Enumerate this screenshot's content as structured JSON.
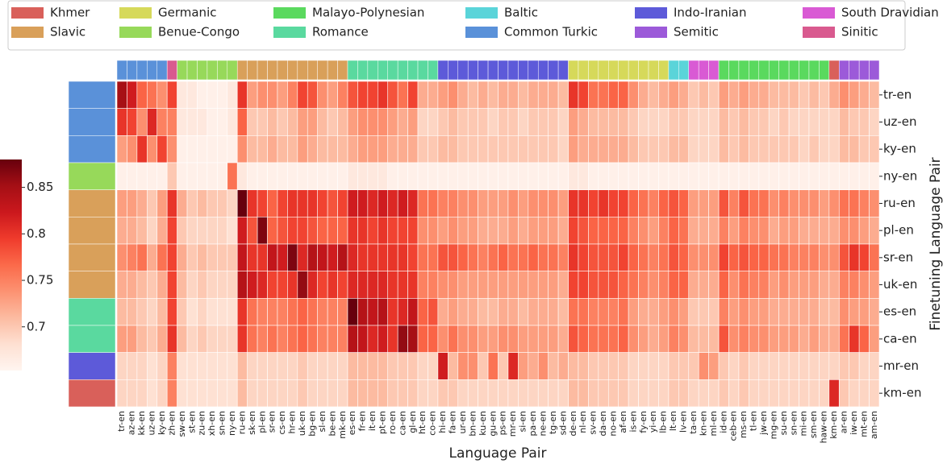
{
  "chart_data": {
    "type": "heatmap",
    "x_label": "Language Pair",
    "y_label": "Finetuning Language Pair",
    "colormap": "Reds",
    "clim": [
      0.653,
      0.88
    ],
    "colorbar_ticks": [
      0.7,
      0.75,
      0.8,
      0.85
    ],
    "groups": [
      {
        "name": "Khmer",
        "color": "#d9605a"
      },
      {
        "name": "Slavic",
        "color": "#d9a05a"
      },
      {
        "name": "Germanic",
        "color": "#d6d95a"
      },
      {
        "name": "Benue-Congo",
        "color": "#97d95a"
      },
      {
        "name": "Malayo-Polynesian",
        "color": "#5ad95e"
      },
      {
        "name": "Romance",
        "color": "#5ad99f"
      },
      {
        "name": "Baltic",
        "color": "#5ad4d9"
      },
      {
        "name": "Common Turkic",
        "color": "#5a91d9"
      },
      {
        "name": "Indo-Iranian",
        "color": "#5d5ad9"
      },
      {
        "name": "Semitic",
        "color": "#9c5ad9"
      },
      {
        "name": "South Dravidian",
        "color": "#d95ad4"
      },
      {
        "name": "Sinitic",
        "color": "#d95a8f"
      }
    ],
    "categories": [
      "tr-en",
      "az-en",
      "kk-en",
      "uz-en",
      "ky-en",
      "zh-en",
      "sw-en",
      "st-en",
      "zu-en",
      "xh-en",
      "sn-en",
      "ny-en",
      "ru-en",
      "sk-en",
      "pl-en",
      "sr-en",
      "cs-en",
      "hr-en",
      "uk-en",
      "bg-en",
      "sl-en",
      "be-en",
      "mk-en",
      "es-en",
      "fr-en",
      "it-en",
      "pt-en",
      "ro-en",
      "ca-en",
      "gl-en",
      "ht-en",
      "co-en",
      "hi-en",
      "fa-en",
      "ur-en",
      "bn-en",
      "ku-en",
      "gu-en",
      "ps-en",
      "mr-en",
      "si-en",
      "pa-en",
      "ne-en",
      "tg-en",
      "sd-en",
      "de-en",
      "nl-en",
      "sv-en",
      "da-en",
      "no-en",
      "af-en",
      "is-en",
      "fy-en",
      "yi-en",
      "lb-en",
      "lt-en",
      "lv-en",
      "ta-en",
      "kn-en",
      "ml-en",
      "id-en",
      "ceb-en",
      "ms-en",
      "tl-en",
      "jw-en",
      "mg-en",
      "su-en",
      "sn-en",
      "mi-en",
      "sm-en",
      "haw-en",
      "km-en",
      "ar-en",
      "iw-en",
      "mt-en",
      "am-en"
    ],
    "column_groups": [
      "Common Turkic",
      "Common Turkic",
      "Common Turkic",
      "Common Turkic",
      "Common Turkic",
      "Sinitic",
      "Benue-Congo",
      "Benue-Congo",
      "Benue-Congo",
      "Benue-Congo",
      "Benue-Congo",
      "Benue-Congo",
      "Slavic",
      "Slavic",
      "Slavic",
      "Slavic",
      "Slavic",
      "Slavic",
      "Slavic",
      "Slavic",
      "Slavic",
      "Slavic",
      "Slavic",
      "Romance",
      "Romance",
      "Romance",
      "Romance",
      "Romance",
      "Romance",
      "Romance",
      "Romance",
      "Romance",
      "Indo-Iranian",
      "Indo-Iranian",
      "Indo-Iranian",
      "Indo-Iranian",
      "Indo-Iranian",
      "Indo-Iranian",
      "Indo-Iranian",
      "Indo-Iranian",
      "Indo-Iranian",
      "Indo-Iranian",
      "Indo-Iranian",
      "Indo-Iranian",
      "Indo-Iranian",
      "Germanic",
      "Germanic",
      "Germanic",
      "Germanic",
      "Germanic",
      "Germanic",
      "Germanic",
      "Germanic",
      "Germanic",
      "Germanic",
      "Baltic",
      "Baltic",
      "South Dravidian",
      "South Dravidian",
      "South Dravidian",
      "Malayo-Polynesian",
      "Malayo-Polynesian",
      "Malayo-Polynesian",
      "Malayo-Polynesian",
      "Malayo-Polynesian",
      "Malayo-Polynesian",
      "Malayo-Polynesian",
      "Malayo-Polynesian",
      "Malayo-Polynesian",
      "Malayo-Polynesian",
      "Malayo-Polynesian",
      "Khmer",
      "Semitic",
      "Semitic",
      "Semitic",
      "Semitic"
    ],
    "rows": [
      "tr-en",
      "uz-en",
      "ky-en",
      "ny-en",
      "ru-en",
      "pl-en",
      "sr-en",
      "uk-en",
      "es-en",
      "ca-en",
      "mr-en",
      "km-en"
    ],
    "row_groups": [
      "Common Turkic",
      "Common Turkic",
      "Common Turkic",
      "Benue-Congo",
      "Slavic",
      "Slavic",
      "Slavic",
      "Slavic",
      "Romance",
      "Romance",
      "Indo-Iranian",
      "Khmer"
    ],
    "values": [
      [
        0.85,
        0.82,
        0.77,
        0.76,
        0.74,
        0.79,
        0.67,
        0.67,
        0.66,
        0.66,
        0.66,
        0.67,
        0.8,
        0.73,
        0.74,
        0.74,
        0.73,
        0.75,
        0.79,
        0.78,
        0.74,
        0.73,
        0.75,
        0.78,
        0.79,
        0.79,
        0.8,
        0.78,
        0.76,
        0.79,
        0.72,
        0.72,
        0.73,
        0.74,
        0.72,
        0.71,
        0.72,
        0.71,
        0.72,
        0.72,
        0.71,
        0.72,
        0.72,
        0.72,
        0.71,
        0.8,
        0.79,
        0.76,
        0.76,
        0.77,
        0.77,
        0.74,
        0.72,
        0.71,
        0.72,
        0.73,
        0.72,
        0.7,
        0.71,
        0.7,
        0.73,
        0.72,
        0.73,
        0.72,
        0.72,
        0.71,
        0.71,
        0.71,
        0.7,
        0.71,
        0.7,
        0.72,
        0.74,
        0.73,
        0.72,
        0.71
      ],
      [
        0.8,
        0.79,
        0.74,
        0.81,
        0.75,
        0.75,
        0.67,
        0.67,
        0.67,
        0.66,
        0.66,
        0.67,
        0.77,
        0.7,
        0.7,
        0.71,
        0.7,
        0.71,
        0.73,
        0.73,
        0.71,
        0.7,
        0.71,
        0.73,
        0.74,
        0.74,
        0.74,
        0.73,
        0.72,
        0.73,
        0.69,
        0.69,
        0.7,
        0.71,
        0.7,
        0.7,
        0.7,
        0.69,
        0.7,
        0.7,
        0.69,
        0.7,
        0.7,
        0.7,
        0.69,
        0.73,
        0.72,
        0.71,
        0.71,
        0.71,
        0.71,
        0.7,
        0.69,
        0.69,
        0.69,
        0.7,
        0.7,
        0.69,
        0.69,
        0.69,
        0.71,
        0.7,
        0.71,
        0.7,
        0.7,
        0.69,
        0.7,
        0.69,
        0.69,
        0.69,
        0.69,
        0.69,
        0.71,
        0.7,
        0.7,
        0.69
      ],
      [
        0.73,
        0.74,
        0.8,
        0.74,
        0.79,
        0.74,
        0.66,
        0.66,
        0.66,
        0.66,
        0.66,
        0.66,
        0.74,
        0.71,
        0.71,
        0.72,
        0.71,
        0.71,
        0.73,
        0.72,
        0.71,
        0.71,
        0.71,
        0.72,
        0.73,
        0.73,
        0.73,
        0.72,
        0.72,
        0.72,
        0.7,
        0.7,
        0.71,
        0.71,
        0.7,
        0.7,
        0.7,
        0.7,
        0.7,
        0.7,
        0.7,
        0.7,
        0.7,
        0.7,
        0.69,
        0.73,
        0.72,
        0.72,
        0.72,
        0.72,
        0.72,
        0.71,
        0.7,
        0.7,
        0.7,
        0.71,
        0.71,
        0.69,
        0.69,
        0.69,
        0.71,
        0.7,
        0.71,
        0.7,
        0.7,
        0.7,
        0.7,
        0.7,
        0.69,
        0.7,
        0.69,
        0.69,
        0.71,
        0.71,
        0.7,
        0.7
      ],
      [
        0.66,
        0.66,
        0.66,
        0.66,
        0.66,
        0.7,
        0.66,
        0.66,
        0.66,
        0.66,
        0.66,
        0.76,
        0.67,
        0.66,
        0.66,
        0.66,
        0.66,
        0.66,
        0.66,
        0.66,
        0.66,
        0.66,
        0.66,
        0.67,
        0.67,
        0.67,
        0.67,
        0.66,
        0.66,
        0.66,
        0.66,
        0.66,
        0.66,
        0.66,
        0.66,
        0.66,
        0.66,
        0.66,
        0.66,
        0.66,
        0.66,
        0.66,
        0.66,
        0.66,
        0.66,
        0.67,
        0.67,
        0.66,
        0.66,
        0.66,
        0.66,
        0.66,
        0.66,
        0.66,
        0.66,
        0.66,
        0.66,
        0.66,
        0.66,
        0.66,
        0.66,
        0.66,
        0.66,
        0.66,
        0.66,
        0.66,
        0.66,
        0.66,
        0.66,
        0.66,
        0.66,
        0.66,
        0.66,
        0.66,
        0.66,
        0.66
      ],
      [
        0.73,
        0.73,
        0.72,
        0.7,
        0.73,
        0.8,
        0.72,
        0.7,
        0.71,
        0.7,
        0.7,
        0.69,
        0.88,
        0.8,
        0.79,
        0.77,
        0.79,
        0.8,
        0.8,
        0.8,
        0.79,
        0.78,
        0.79,
        0.82,
        0.82,
        0.81,
        0.82,
        0.81,
        0.82,
        0.81,
        0.76,
        0.76,
        0.75,
        0.75,
        0.74,
        0.74,
        0.73,
        0.73,
        0.73,
        0.74,
        0.73,
        0.74,
        0.74,
        0.74,
        0.73,
        0.8,
        0.8,
        0.79,
        0.8,
        0.79,
        0.79,
        0.77,
        0.76,
        0.75,
        0.77,
        0.78,
        0.77,
        0.73,
        0.73,
        0.73,
        0.78,
        0.75,
        0.78,
        0.76,
        0.76,
        0.74,
        0.75,
        0.74,
        0.74,
        0.74,
        0.73,
        0.74,
        0.76,
        0.76,
        0.75,
        0.74
      ],
      [
        0.72,
        0.72,
        0.71,
        0.69,
        0.72,
        0.79,
        0.7,
        0.69,
        0.69,
        0.69,
        0.69,
        0.68,
        0.82,
        0.78,
        0.87,
        0.77,
        0.78,
        0.79,
        0.79,
        0.78,
        0.77,
        0.77,
        0.77,
        0.8,
        0.8,
        0.79,
        0.8,
        0.79,
        0.79,
        0.79,
        0.74,
        0.74,
        0.73,
        0.74,
        0.73,
        0.73,
        0.72,
        0.72,
        0.72,
        0.73,
        0.72,
        0.73,
        0.73,
        0.73,
        0.72,
        0.79,
        0.78,
        0.77,
        0.77,
        0.77,
        0.77,
        0.75,
        0.74,
        0.73,
        0.75,
        0.77,
        0.76,
        0.72,
        0.72,
        0.72,
        0.75,
        0.73,
        0.75,
        0.74,
        0.74,
        0.72,
        0.73,
        0.73,
        0.72,
        0.72,
        0.72,
        0.72,
        0.74,
        0.74,
        0.73,
        0.72
      ],
      [
        0.74,
        0.75,
        0.76,
        0.72,
        0.76,
        0.79,
        0.72,
        0.7,
        0.71,
        0.7,
        0.7,
        0.7,
        0.83,
        0.8,
        0.8,
        0.83,
        0.82,
        0.87,
        0.81,
        0.84,
        0.83,
        0.82,
        0.84,
        0.81,
        0.8,
        0.8,
        0.8,
        0.8,
        0.8,
        0.79,
        0.76,
        0.76,
        0.78,
        0.78,
        0.77,
        0.76,
        0.75,
        0.76,
        0.77,
        0.76,
        0.76,
        0.77,
        0.76,
        0.76,
        0.75,
        0.8,
        0.79,
        0.78,
        0.78,
        0.78,
        0.79,
        0.77,
        0.76,
        0.75,
        0.76,
        0.78,
        0.77,
        0.74,
        0.74,
        0.74,
        0.79,
        0.77,
        0.78,
        0.77,
        0.77,
        0.76,
        0.76,
        0.75,
        0.75,
        0.75,
        0.74,
        0.74,
        0.78,
        0.8,
        0.79,
        0.76
      ],
      [
        0.72,
        0.72,
        0.71,
        0.7,
        0.72,
        0.79,
        0.71,
        0.69,
        0.7,
        0.69,
        0.69,
        0.69,
        0.84,
        0.82,
        0.81,
        0.79,
        0.79,
        0.8,
        0.86,
        0.81,
        0.79,
        0.8,
        0.79,
        0.81,
        0.81,
        0.81,
        0.81,
        0.8,
        0.8,
        0.8,
        0.75,
        0.75,
        0.74,
        0.74,
        0.73,
        0.73,
        0.73,
        0.73,
        0.73,
        0.73,
        0.73,
        0.73,
        0.73,
        0.73,
        0.72,
        0.79,
        0.79,
        0.78,
        0.78,
        0.78,
        0.77,
        0.76,
        0.75,
        0.74,
        0.75,
        0.77,
        0.77,
        0.72,
        0.72,
        0.72,
        0.77,
        0.74,
        0.76,
        0.75,
        0.75,
        0.73,
        0.74,
        0.73,
        0.73,
        0.73,
        0.72,
        0.72,
        0.75,
        0.75,
        0.74,
        0.73
      ],
      [
        0.71,
        0.71,
        0.7,
        0.69,
        0.71,
        0.79,
        0.7,
        0.68,
        0.69,
        0.68,
        0.68,
        0.68,
        0.8,
        0.76,
        0.75,
        0.75,
        0.75,
        0.76,
        0.77,
        0.76,
        0.75,
        0.75,
        0.75,
        0.88,
        0.84,
        0.83,
        0.84,
        0.8,
        0.81,
        0.83,
        0.77,
        0.78,
        0.72,
        0.73,
        0.72,
        0.72,
        0.71,
        0.71,
        0.72,
        0.72,
        0.71,
        0.72,
        0.72,
        0.72,
        0.71,
        0.76,
        0.76,
        0.75,
        0.75,
        0.75,
        0.76,
        0.73,
        0.72,
        0.72,
        0.73,
        0.74,
        0.73,
        0.7,
        0.7,
        0.7,
        0.75,
        0.73,
        0.74,
        0.73,
        0.73,
        0.72,
        0.72,
        0.72,
        0.72,
        0.72,
        0.71,
        0.71,
        0.74,
        0.73,
        0.73,
        0.72
      ],
      [
        0.73,
        0.73,
        0.71,
        0.7,
        0.72,
        0.8,
        0.71,
        0.69,
        0.7,
        0.69,
        0.69,
        0.69,
        0.8,
        0.76,
        0.75,
        0.76,
        0.75,
        0.76,
        0.77,
        0.76,
        0.75,
        0.75,
        0.75,
        0.84,
        0.83,
        0.81,
        0.82,
        0.8,
        0.86,
        0.85,
        0.77,
        0.77,
        0.74,
        0.76,
        0.74,
        0.74,
        0.73,
        0.73,
        0.74,
        0.74,
        0.73,
        0.73,
        0.73,
        0.73,
        0.72,
        0.78,
        0.77,
        0.76,
        0.76,
        0.76,
        0.77,
        0.74,
        0.73,
        0.72,
        0.73,
        0.75,
        0.74,
        0.71,
        0.71,
        0.71,
        0.78,
        0.74,
        0.75,
        0.74,
        0.74,
        0.73,
        0.73,
        0.73,
        0.72,
        0.73,
        0.72,
        0.72,
        0.76,
        0.8,
        0.77,
        0.73
      ],
      [
        0.69,
        0.69,
        0.69,
        0.68,
        0.69,
        0.75,
        0.68,
        0.68,
        0.68,
        0.68,
        0.68,
        0.68,
        0.71,
        0.69,
        0.69,
        0.69,
        0.69,
        0.69,
        0.7,
        0.69,
        0.69,
        0.69,
        0.69,
        0.71,
        0.71,
        0.71,
        0.71,
        0.7,
        0.7,
        0.7,
        0.69,
        0.69,
        0.82,
        0.71,
        0.74,
        0.74,
        0.7,
        0.76,
        0.7,
        0.81,
        0.73,
        0.72,
        0.74,
        0.71,
        0.72,
        0.71,
        0.71,
        0.7,
        0.7,
        0.7,
        0.7,
        0.69,
        0.69,
        0.69,
        0.69,
        0.7,
        0.7,
        0.7,
        0.74,
        0.73,
        0.7,
        0.69,
        0.7,
        0.69,
        0.69,
        0.69,
        0.69,
        0.69,
        0.69,
        0.69,
        0.69,
        0.69,
        0.7,
        0.7,
        0.69,
        0.69
      ],
      [
        0.69,
        0.69,
        0.69,
        0.68,
        0.69,
        0.75,
        0.68,
        0.68,
        0.68,
        0.68,
        0.68,
        0.68,
        0.71,
        0.69,
        0.69,
        0.69,
        0.69,
        0.69,
        0.7,
        0.69,
        0.69,
        0.69,
        0.69,
        0.71,
        0.71,
        0.71,
        0.71,
        0.7,
        0.7,
        0.7,
        0.69,
        0.69,
        0.7,
        0.7,
        0.69,
        0.69,
        0.69,
        0.69,
        0.69,
        0.69,
        0.69,
        0.69,
        0.69,
        0.69,
        0.69,
        0.71,
        0.71,
        0.7,
        0.7,
        0.7,
        0.7,
        0.69,
        0.69,
        0.69,
        0.69,
        0.7,
        0.7,
        0.69,
        0.69,
        0.69,
        0.7,
        0.69,
        0.7,
        0.69,
        0.69,
        0.69,
        0.69,
        0.69,
        0.69,
        0.69,
        0.69,
        0.81,
        0.7,
        0.69,
        0.69,
        0.69
      ]
    ]
  }
}
